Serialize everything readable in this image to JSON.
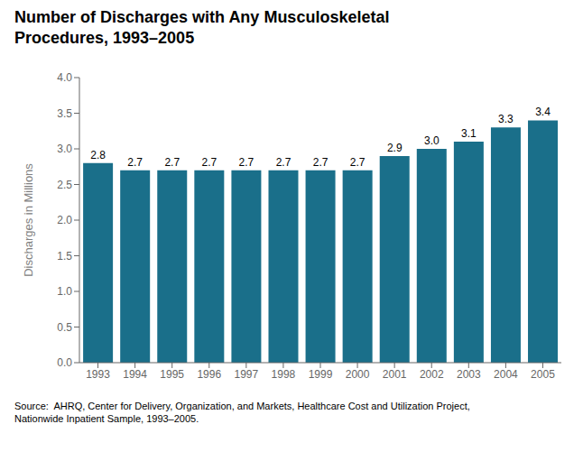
{
  "chart_data": {
    "type": "bar",
    "title": "Number of Discharges with Any Musculoskeletal\nProcedures, 1993–2005",
    "categories": [
      "1993",
      "1994",
      "1995",
      "1996",
      "1997",
      "1998",
      "1999",
      "2000",
      "2001",
      "2002",
      "2003",
      "2004",
      "2005"
    ],
    "values": [
      2.8,
      2.7,
      2.7,
      2.7,
      2.7,
      2.7,
      2.7,
      2.7,
      2.9,
      3.0,
      3.1,
      3.3,
      3.4
    ],
    "value_labels": [
      "2.8",
      "2.7",
      "2.7",
      "2.7",
      "2.7",
      "2.7",
      "2.7",
      "2.7",
      "2.9",
      "3.0",
      "3.1",
      "3.3",
      "3.4"
    ],
    "data_labels": true,
    "color": "#1a6f8a",
    "y_label": "Discharges in Millions",
    "ylim": [
      0,
      4.0
    ],
    "yticks": [
      {
        "value": 0,
        "label": "0.0"
      },
      0.5,
      {
        "value": 1,
        "label": "1.0"
      },
      1.5,
      {
        "value": 2,
        "label": "2.0"
      },
      2.5,
      {
        "value": 3,
        "label": "3.0"
      },
      3.5,
      {
        "value": 4,
        "label": "4.0"
      }
    ],
    "grid": false,
    "annotations": [
      "Source:  AHRQ, Center for Delivery, Organization, and Markets, Healthcare Cost and Utilization Project,\nNationwide Inpatient Sample, 1993–2005."
    ]
  }
}
